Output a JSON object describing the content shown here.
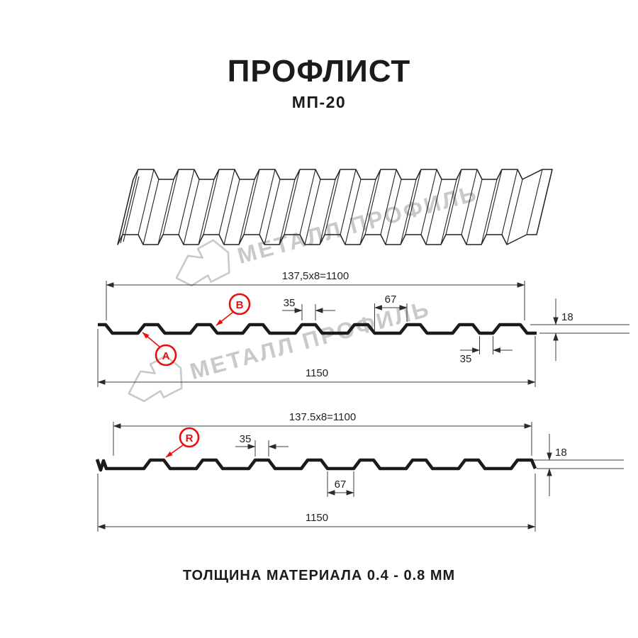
{
  "header": {
    "title": "ПРОФЛИСТ",
    "subtitle": "МП-20"
  },
  "watermark": {
    "brand": "МЕТАЛЛ ПРОФИЛЬ"
  },
  "diagram": {
    "section1": {
      "pitch": "137,5x8=1100",
      "rib_top_width": "35",
      "valley_width": "67",
      "height": "18",
      "overlap_valley_width": "35",
      "total_width": "1150",
      "label_a": "A",
      "label_b": "B"
    },
    "section2": {
      "pitch": "137.5x8=1100",
      "rib_top_width": "35",
      "valley_width": "67",
      "height": "18",
      "total_width": "1150",
      "label_r": "R"
    }
  },
  "footer": {
    "thickness_note": "ТОЛЩИНА МАТЕРИАЛА 0.4 - 0.8 ММ"
  },
  "colors": {
    "line": "#1b1b1b",
    "dimension_line": "#3c3c3c",
    "accent_red": "#e8100c",
    "watermark_gray": "#c9c9c9"
  }
}
